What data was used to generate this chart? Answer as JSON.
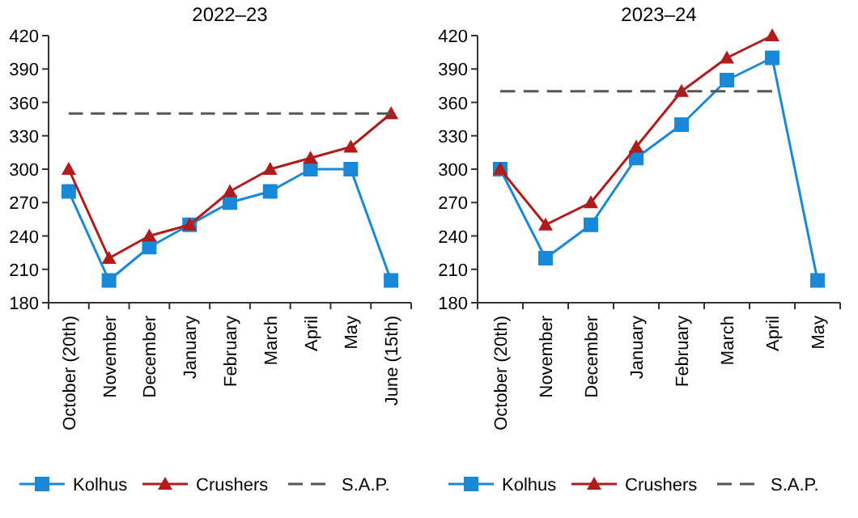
{
  "chart_data": [
    {
      "type": "line",
      "title": "2022–23",
      "categories": [
        "October (20th)",
        "November",
        "December",
        "January",
        "February",
        "March",
        "April",
        "May",
        "June (15th)"
      ],
      "series": [
        {
          "name": "Kolhus",
          "color": "#1a88d8",
          "marker": "square",
          "values": [
            280,
            200,
            230,
            250,
            270,
            280,
            300,
            300,
            200
          ]
        },
        {
          "name": "Crushers",
          "color": "#b01c1c",
          "marker": "triangle",
          "values": [
            300,
            220,
            240,
            250,
            280,
            300,
            310,
            320,
            350
          ]
        },
        {
          "name": "S.A.P.",
          "color": "#555555",
          "marker": "none",
          "line_style": "dashed",
          "values": [
            350,
            350,
            350,
            350,
            350,
            350,
            350,
            350,
            350
          ]
        }
      ],
      "ylim": [
        180,
        420
      ],
      "yticks": [
        180,
        210,
        240,
        270,
        300,
        330,
        360,
        390,
        420
      ],
      "legend": "bottom",
      "grid": false
    },
    {
      "type": "line",
      "title": "2023–24",
      "categories": [
        "October (20th)",
        "November",
        "December",
        "January",
        "February",
        "March",
        "April",
        "May"
      ],
      "series": [
        {
          "name": "Kolhus",
          "color": "#1a88d8",
          "marker": "square",
          "values": [
            300,
            220,
            250,
            310,
            340,
            380,
            400,
            200
          ]
        },
        {
          "name": "Crushers",
          "color": "#b01c1c",
          "marker": "triangle",
          "values": [
            300,
            250,
            270,
            320,
            370,
            400,
            420,
            null
          ]
        },
        {
          "name": "S.A.P.",
          "color": "#555555",
          "marker": "none",
          "line_style": "dashed",
          "values": [
            370,
            370,
            370,
            370,
            370,
            370,
            370,
            null
          ]
        }
      ],
      "ylim": [
        180,
        420
      ],
      "yticks": [
        180,
        210,
        240,
        270,
        300,
        330,
        360,
        390,
        420
      ],
      "legend": "bottom",
      "grid": false
    }
  ]
}
